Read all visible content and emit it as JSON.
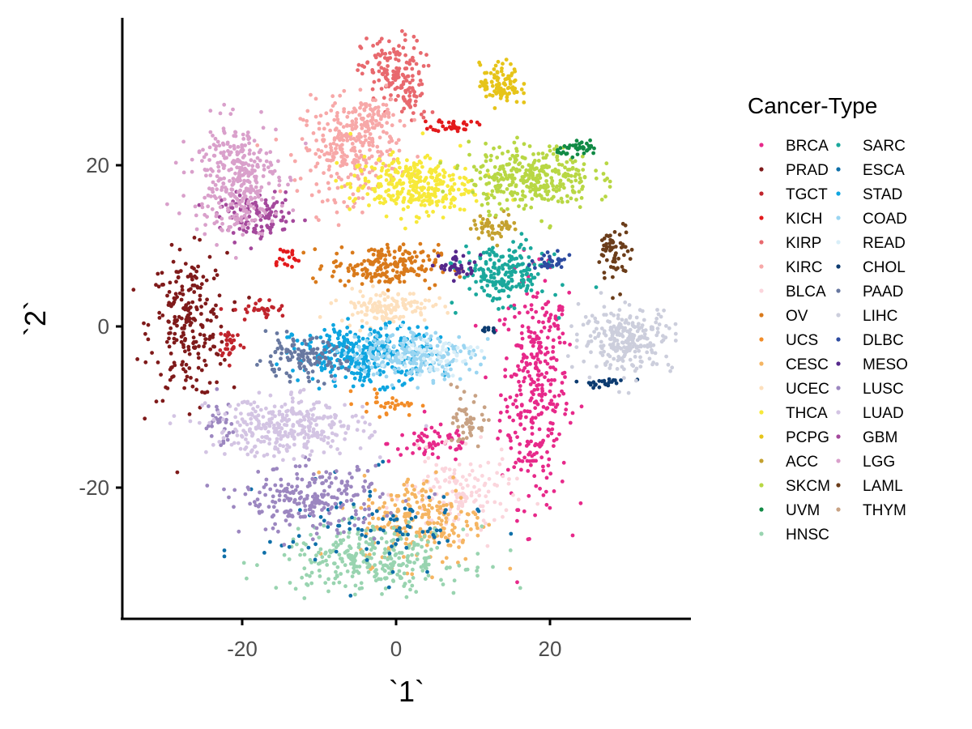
{
  "chart_data": {
    "type": "scatter",
    "xlabel": "`1`",
    "ylabel": "`2`",
    "xlim": [
      -35,
      38
    ],
    "ylim": [
      -36,
      38
    ],
    "xticks": [
      -20,
      0,
      20
    ],
    "yticks": [
      -20,
      0,
      20
    ],
    "grid": false,
    "legend": {
      "title": "Cancer-Type",
      "placement": "right"
    },
    "series": [
      {
        "name": "BRCA",
        "color": "#e7298a",
        "clusters": [
          {
            "cx": 18,
            "cy": -8,
            "sx": 2.2,
            "sy": 7,
            "n": 320
          },
          {
            "cx": 5,
            "cy": -14.5,
            "sx": 3,
            "sy": 1.2,
            "n": 60
          },
          {
            "cx": 20,
            "cy": 0.5,
            "sx": 1,
            "sy": 1.2,
            "n": 20
          }
        ]
      },
      {
        "name": "PRAD",
        "color": "#7f1a1a",
        "clusters": [
          {
            "cx": -27,
            "cy": 0,
            "sx": 2.5,
            "sy": 4.5,
            "n": 230
          }
        ]
      },
      {
        "name": "TGCT",
        "color": "#c0242c",
        "clusters": [
          {
            "cx": -21.5,
            "cy": -2,
            "sx": 0.8,
            "sy": 1,
            "n": 30
          },
          {
            "cx": -17.5,
            "cy": 2,
            "sx": 1.8,
            "sy": 0.7,
            "n": 30
          }
        ]
      },
      {
        "name": "KICH",
        "color": "#e31a1c",
        "clusters": [
          {
            "cx": 7.5,
            "cy": 25,
            "sx": 1.4,
            "sy": 0.4,
            "n": 35
          },
          {
            "cx": -14.5,
            "cy": 8.5,
            "sx": 1,
            "sy": 0.8,
            "n": 20
          }
        ]
      },
      {
        "name": "KIRP",
        "color": "#e8696e",
        "clusters": [
          {
            "cx": -0.5,
            "cy": 31.5,
            "sx": 2,
            "sy": 2.2,
            "n": 140
          },
          {
            "cx": 2,
            "cy": 28,
            "sx": 1.2,
            "sy": 1.5,
            "n": 30
          }
        ]
      },
      {
        "name": "KIRC",
        "color": "#f7a8a8",
        "clusters": [
          {
            "cx": -6,
            "cy": 22,
            "sx": 3.2,
            "sy": 3,
            "n": 280
          },
          {
            "cx": -3,
            "cy": 26,
            "sx": 1.5,
            "sy": 1.5,
            "n": 60
          }
        ]
      },
      {
        "name": "BLCA",
        "color": "#fbd5dc",
        "clusters": [
          {
            "cx": 8,
            "cy": -21,
            "sx": 3.5,
            "sy": 2.5,
            "n": 150
          }
        ]
      },
      {
        "name": "OV",
        "color": "#d97a1b",
        "clusters": [
          {
            "cx": -1.5,
            "cy": 7.5,
            "sx": 3.5,
            "sy": 1.3,
            "n": 200
          }
        ]
      },
      {
        "name": "UCS",
        "color": "#f28c28",
        "clusters": [
          {
            "cx": -1,
            "cy": -9.5,
            "sx": 2,
            "sy": 0.8,
            "n": 30
          }
        ]
      },
      {
        "name": "CESC",
        "color": "#f5b562",
        "clusters": [
          {
            "cx": 3.5,
            "cy": -24,
            "sx": 4,
            "sy": 2.8,
            "n": 220
          }
        ]
      },
      {
        "name": "UCEC",
        "color": "#fde0bd",
        "clusters": [
          {
            "cx": -1.5,
            "cy": 2.5,
            "sx": 3,
            "sy": 1,
            "n": 130
          }
        ]
      },
      {
        "name": "THCA",
        "color": "#f7e93a",
        "clusters": [
          {
            "cx": 2,
            "cy": 17.5,
            "sx": 4,
            "sy": 1.8,
            "n": 320
          }
        ]
      },
      {
        "name": "PCPG",
        "color": "#e6c419",
        "clusters": [
          {
            "cx": 13.5,
            "cy": 30,
            "sx": 1.3,
            "sy": 1.3,
            "n": 100
          }
        ]
      },
      {
        "name": "ACC",
        "color": "#c4a12f",
        "clusters": [
          {
            "cx": 13,
            "cy": 12.5,
            "sx": 1.5,
            "sy": 0.8,
            "n": 50
          }
        ]
      },
      {
        "name": "SKCM",
        "color": "#b8d744",
        "clusters": [
          {
            "cx": 17.5,
            "cy": 18.5,
            "sx": 4,
            "sy": 2,
            "n": 330
          }
        ]
      },
      {
        "name": "UVM",
        "color": "#118a45",
        "clusters": [
          {
            "cx": 24,
            "cy": 22,
            "sx": 1.5,
            "sy": 0.4,
            "n": 40
          }
        ]
      },
      {
        "name": "HNSC",
        "color": "#99d4b0",
        "clusters": [
          {
            "cx": -3,
            "cy": -29,
            "sx": 6,
            "sy": 2,
            "n": 300
          }
        ]
      },
      {
        "name": "SARC",
        "color": "#1aa89c",
        "clusters": [
          {
            "cx": 14,
            "cy": 6.5,
            "sx": 2.8,
            "sy": 1.8,
            "n": 200
          }
        ]
      },
      {
        "name": "ESCA",
        "color": "#0e6fa8",
        "clusters": [
          {
            "cx": -3,
            "cy": -25,
            "sx": 7,
            "sy": 3,
            "n": 90
          }
        ]
      },
      {
        "name": "STAD",
        "color": "#0ea5e0",
        "clusters": [
          {
            "cx": -4,
            "cy": -3.5,
            "sx": 4.5,
            "sy": 1.8,
            "n": 340
          }
        ]
      },
      {
        "name": "COAD",
        "color": "#9ad5f1",
        "clusters": [
          {
            "cx": 2,
            "cy": -3.5,
            "sx": 4,
            "sy": 1.4,
            "n": 230
          }
        ]
      },
      {
        "name": "READ",
        "color": "#d8eef8",
        "clusters": [
          {
            "cx": 4.5,
            "cy": -3.5,
            "sx": 3,
            "sy": 1.2,
            "n": 60
          }
        ]
      },
      {
        "name": "CHOL",
        "color": "#0c3b70",
        "clusters": [
          {
            "cx": 27,
            "cy": -7,
            "sx": 1.8,
            "sy": 0.3,
            "n": 25
          },
          {
            "cx": 12,
            "cy": -0.4,
            "sx": 0.6,
            "sy": 0.2,
            "n": 8
          }
        ]
      },
      {
        "name": "PAAD",
        "color": "#6878a0",
        "clusters": [
          {
            "cx": -12.5,
            "cy": -4,
            "sx": 3,
            "sy": 1.2,
            "n": 120
          }
        ]
      },
      {
        "name": "LIHC",
        "color": "#cccedc",
        "clusters": [
          {
            "cx": 30,
            "cy": -1.5,
            "sx": 3,
            "sy": 2,
            "n": 250
          }
        ]
      },
      {
        "name": "DLBC",
        "color": "#2d4ba0",
        "clusters": [
          {
            "cx": 20.5,
            "cy": 8,
            "sx": 1.5,
            "sy": 0.5,
            "n": 30
          }
        ]
      },
      {
        "name": "MESO",
        "color": "#55288b",
        "clusters": [
          {
            "cx": 8,
            "cy": 7.5,
            "sx": 1.2,
            "sy": 0.8,
            "n": 40
          }
        ]
      },
      {
        "name": "LUSC",
        "color": "#9c87c0",
        "clusters": [
          {
            "cx": -11,
            "cy": -21.5,
            "sx": 4.5,
            "sy": 2,
            "n": 230
          },
          {
            "cx": -23,
            "cy": -12,
            "sx": 1,
            "sy": 1.5,
            "n": 30
          }
        ]
      },
      {
        "name": "LUAD",
        "color": "#d3c4e3",
        "clusters": [
          {
            "cx": -14,
            "cy": -12.5,
            "sx": 5,
            "sy": 1.8,
            "n": 330
          }
        ]
      },
      {
        "name": "GBM",
        "color": "#a4489c",
        "clusters": [
          {
            "cx": -18,
            "cy": 13.5,
            "sx": 2.5,
            "sy": 1.3,
            "n": 120
          }
        ]
      },
      {
        "name": "LGG",
        "color": "#d9a0cb",
        "clusters": [
          {
            "cx": -21,
            "cy": 18.5,
            "sx": 2.8,
            "sy": 3.5,
            "n": 330
          }
        ]
      },
      {
        "name": "LAML",
        "color": "#6b3d1a",
        "clusters": [
          {
            "cx": 28.5,
            "cy": 9,
            "sx": 1,
            "sy": 2,
            "n": 60
          }
        ]
      },
      {
        "name": "THYM",
        "color": "#c8a284",
        "clusters": [
          {
            "cx": 9.5,
            "cy": -12,
            "sx": 1,
            "sy": 1.5,
            "n": 50
          }
        ]
      }
    ]
  }
}
